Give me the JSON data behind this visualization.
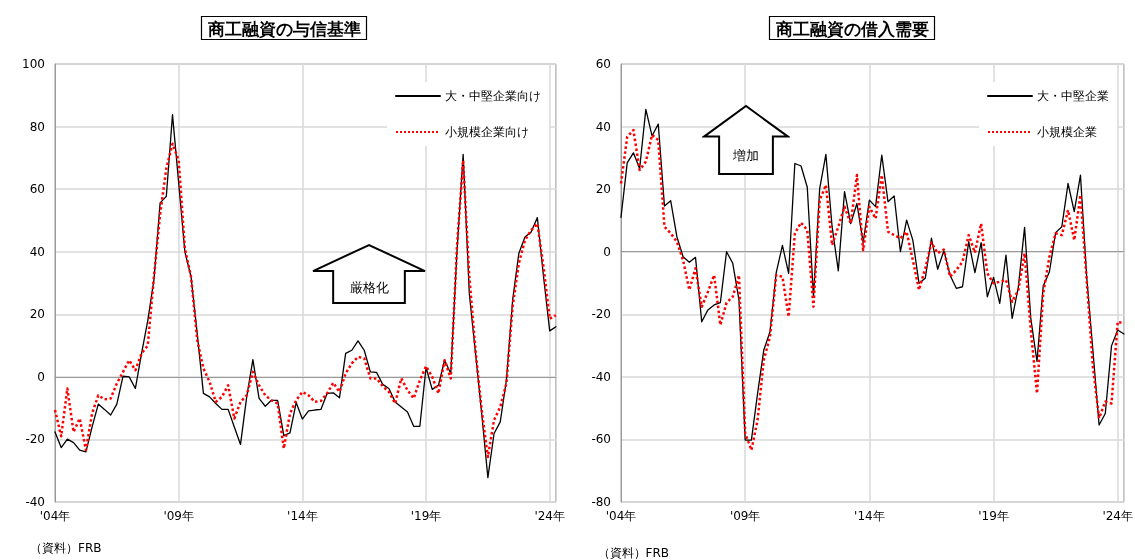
{
  "chart_data": [
    {
      "type": "line",
      "title": "商工融資の与信基準",
      "categories": [
        "'04年",
        null,
        null,
        null,
        null,
        null,
        null,
        null,
        null,
        null,
        null,
        null,
        null,
        null,
        null,
        null,
        null,
        null,
        null,
        null,
        "'09年",
        null,
        null,
        null,
        null,
        null,
        null,
        null,
        null,
        null,
        null,
        null,
        null,
        null,
        null,
        null,
        null,
        null,
        null,
        null,
        "'14年",
        null,
        null,
        null,
        null,
        null,
        null,
        null,
        null,
        null,
        null,
        null,
        null,
        null,
        null,
        null,
        null,
        null,
        null,
        null,
        "'19年",
        null,
        null,
        null,
        null,
        null,
        null,
        null,
        null,
        null,
        null,
        null,
        null,
        null,
        null,
        null,
        null,
        null,
        null,
        null,
        "'24年",
        null
      ],
      "series": [
        {
          "name": "大・中堅企業向け",
          "color": "#000000",
          "line_style": "solid",
          "values": [
            -17.6,
            -22.6,
            -19.9,
            -21,
            -23.4,
            -24,
            -16,
            -8.7,
            -10.4,
            -12.2,
            -8.7,
            0.2,
            0,
            -3.7,
            7.5,
            18,
            31,
            55.6,
            57.7,
            83.8,
            62,
            40,
            32,
            13.8,
            -5.3,
            -6.4,
            -8.5,
            -10.4,
            -10.4,
            -16,
            -21.6,
            -6.4,
            5.5,
            -6.9,
            -9.4,
            -7.5,
            -7.5,
            -18.8,
            -17.9,
            -8.2,
            -13.5,
            -10.9,
            -10.6,
            -10.4,
            -5.3,
            -5.1,
            -6.7,
            7.5,
            8.5,
            11.5,
            8.5,
            1.6,
            1.4,
            -2.4,
            -3.7,
            -8,
            -9.6,
            -11.2,
            -15.8,
            -15.8,
            3,
            -4,
            -2.7,
            5.3,
            1.1,
            40,
            71.1,
            26.6,
            7.5,
            -11.7,
            -32.2,
            -18.1,
            -14.4,
            -1,
            24.5,
            39.4,
            44.7,
            46.3,
            50.9,
            32,
            14.7,
            16
          ]
        },
        {
          "name": "小規模企業向け",
          "color": "#ff0000",
          "line_style": "dotted",
          "values": [
            -10.6,
            -19,
            -3.7,
            -17.6,
            -13.3,
            -23.4,
            -11.7,
            -5.9,
            -7.2,
            -6.9,
            -2.1,
            1.6,
            5.3,
            2.1,
            7.5,
            10,
            32,
            52,
            66.6,
            74.5,
            69.2,
            41,
            32,
            11.7,
            2.7,
            -1.6,
            -8,
            -6.4,
            -2.7,
            -13.3,
            -8,
            -5.9,
            1.6,
            -2.7,
            -5.9,
            -7.5,
            -8.5,
            -22.9,
            -11.7,
            -7.5,
            -4.8,
            -5.9,
            -8,
            -7.7,
            -5.3,
            -1.9,
            -4.8,
            1.1,
            4.3,
            6.4,
            5.9,
            -0.5,
            -0.5,
            -3,
            -4.8,
            -8.5,
            -0.5,
            -4.3,
            -6.9,
            -1.1,
            3.4,
            0,
            -5.3,
            5.3,
            -0.5,
            41.5,
            69.2,
            32,
            8.5,
            -10.6,
            -25.6,
            -13.8,
            -9.6,
            -2.1,
            22.4,
            36.2,
            43.7,
            46.9,
            49,
            35.1,
            18.6,
            19.7
          ]
        }
      ],
      "ylim": [
        -40,
        100
      ],
      "yticks": [
        -40,
        -20,
        0,
        20,
        40,
        60,
        80,
        100
      ],
      "grid": true,
      "legend": "top right",
      "marker": "none",
      "annotations": [
        "厳格化",
        "（資料）FRB"
      ]
    },
    {
      "type": "line",
      "title": "商工融資の借入需要",
      "categories": [
        "'04年",
        null,
        null,
        null,
        null,
        null,
        null,
        null,
        null,
        null,
        null,
        null,
        null,
        null,
        null,
        null,
        null,
        null,
        null,
        null,
        "'09年",
        null,
        null,
        null,
        null,
        null,
        null,
        null,
        null,
        null,
        null,
        null,
        null,
        null,
        null,
        null,
        null,
        null,
        null,
        null,
        "'14年",
        null,
        null,
        null,
        null,
        null,
        null,
        null,
        null,
        null,
        null,
        null,
        null,
        null,
        null,
        null,
        null,
        null,
        null,
        null,
        "'19年",
        null,
        null,
        null,
        null,
        null,
        null,
        null,
        null,
        null,
        null,
        null,
        null,
        null,
        null,
        null,
        null,
        null,
        null,
        null,
        "'24年",
        null
      ],
      "series": [
        {
          "name": "大・中堅企業",
          "color": "#000000",
          "line_style": "solid",
          "values": [
            11,
            28.4,
            31.6,
            26.6,
            45.5,
            37,
            40.8,
            14.6,
            16.3,
            4.8,
            -1.6,
            -3.4,
            -1.8,
            -22.4,
            -18.6,
            -17,
            -16.3,
            0,
            -3.7,
            -15.4,
            -60.2,
            -60.2,
            -45.3,
            -31.4,
            -25.6,
            -6.7,
            2,
            -6.9,
            28.2,
            27.4,
            20.6,
            -14.4,
            20.2,
            31.1,
            8,
            -6.1,
            19.2,
            9,
            15.4,
            2.9,
            16.5,
            14.4,
            30.9,
            16,
            17.8,
            0,
            10.1,
            3.7,
            -10.1,
            -8.5,
            4.3,
            -5.6,
            0.3,
            -7.5,
            -11.7,
            -11.2,
            3.2,
            -6.7,
            2.9,
            -14.4,
            -8.2,
            -16.5,
            -1.1,
            -21.3,
            -11.2,
            7.8,
            -21.3,
            -35.1,
            -11,
            -6.4,
            6.1,
            8,
            21.8,
            12.8,
            24.5,
            -8,
            -31.4,
            -55.4,
            -51.7,
            -30.1,
            -25,
            -26.3
          ]
        },
        {
          "name": "小規模企業",
          "color": "#ff0000",
          "line_style": "dotted",
          "values": [
            21.8,
            36.7,
            38.9,
            26.1,
            28.8,
            37.3,
            35.7,
            8,
            5.9,
            3.2,
            -2.7,
            -12.2,
            -5.3,
            -17.6,
            -12.8,
            -7.5,
            -23.4,
            -16.3,
            -14.4,
            -7.5,
            -58,
            -63.4,
            -53.8,
            -34.6,
            -27.2,
            -7.5,
            -8,
            -20.8,
            5.9,
            9.3,
            6.9,
            -17.6,
            16.5,
            21.3,
            2.1,
            8,
            14.4,
            9,
            24.5,
            0.5,
            14.4,
            10.6,
            24.5,
            6.4,
            5.3,
            4.3,
            6.4,
            -2.7,
            -12.2,
            -5.3,
            2.9,
            -0.5,
            0.7,
            -8,
            -5.9,
            -3.2,
            5.3,
            -0.3,
            9,
            -6.9,
            -10.1,
            -9.6,
            -9,
            -16,
            -12.2,
            -0.5,
            -25,
            -45.3,
            -13.3,
            -1.6,
            5.9,
            5.3,
            13.3,
            3.7,
            18.1,
            -9,
            -36.7,
            -53.2,
            -47.9,
            -48.5,
            -22.4,
            -22.9
          ]
        }
      ],
      "ylim": [
        -80,
        60
      ],
      "yticks": [
        -80,
        -60,
        -40,
        -20,
        0,
        20,
        40,
        60
      ],
      "grid": true,
      "legend": "top right",
      "marker": "none",
      "annotations": [
        "増加",
        "（資料）FRB"
      ]
    }
  ]
}
